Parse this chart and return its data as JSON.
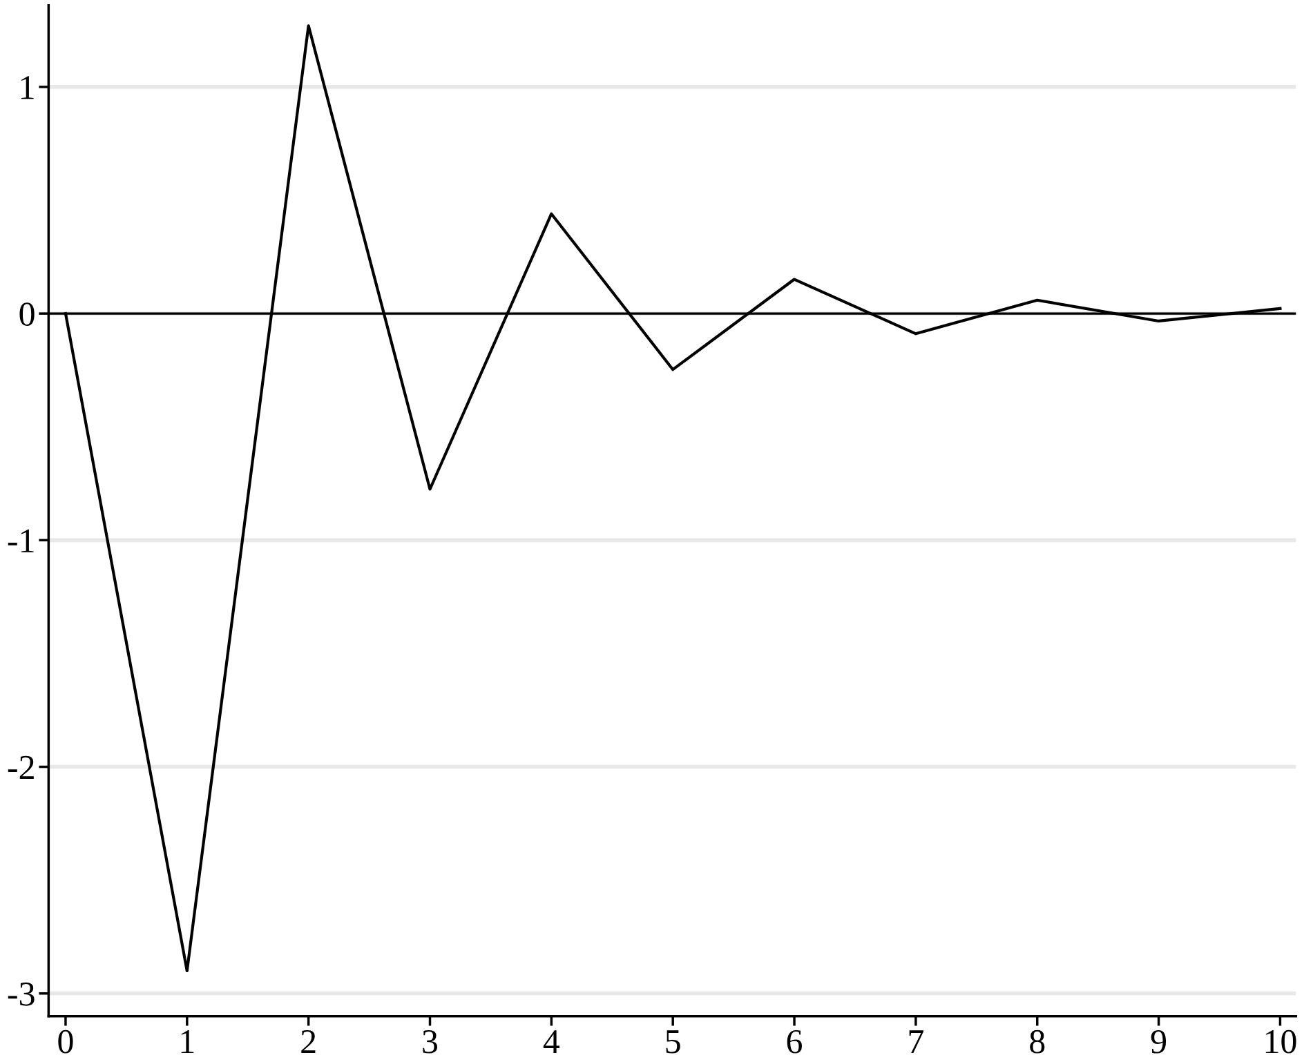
{
  "chart_data": {
    "type": "line",
    "x": [
      0,
      1,
      2,
      3,
      4,
      5,
      6,
      7,
      8,
      9,
      10
    ],
    "series": [
      {
        "color": "#000000",
        "values": [
          0,
          -2.9,
          1.27,
          -0.775,
          0.44,
          -0.247,
          0.151,
          -0.089,
          0.059,
          -0.033,
          0.022
        ]
      }
    ],
    "xlim": [
      -0.14,
      10.13
    ],
    "xticks": [
      0,
      1,
      2,
      3,
      4,
      5,
      6,
      7,
      8,
      9,
      10
    ],
    "ylim": [
      -3.1,
      1.36
    ],
    "yticks": [
      {
        "value": -3,
        "label": "-3"
      },
      {
        "value": -2,
        "label": "-2"
      },
      {
        "value": -1,
        "label": "-1"
      },
      0,
      1
    ],
    "grid": "y",
    "ref_lines": [
      {
        "axis": "y",
        "value": 0,
        "color": "#000000"
      }
    ],
    "marker": "none",
    "line_style": "solid",
    "legend": false
  }
}
